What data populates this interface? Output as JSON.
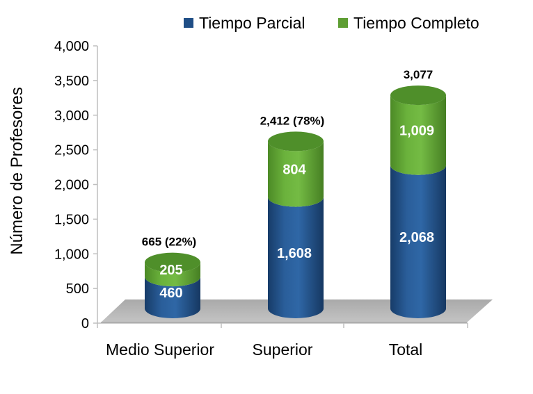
{
  "chart_data": {
    "type": "bar",
    "stacked": true,
    "style": "3d-cylinder",
    "categories": [
      "Medio Superior",
      "Superior",
      "Total"
    ],
    "series": [
      {
        "name": "Tiempo Parcial",
        "values": [
          460,
          1608,
          2068
        ],
        "color": "#1F4E86"
      },
      {
        "name": "Tiempo Completo",
        "values": [
          205,
          804,
          1009
        ],
        "color": "#5E9E33"
      }
    ],
    "total_labels": [
      "665 (22%)",
      "2,412 (78%)",
      "3,077"
    ],
    "ylabel": "Número de Profesores",
    "xlabel": "",
    "ylim": [
      0,
      4000
    ],
    "yticks": [
      "0",
      "500",
      "1,000",
      "1,500",
      "2,000",
      "2,500",
      "3,000",
      "3,500",
      "4,000"
    ],
    "legend_position": "top-right",
    "grid": false
  }
}
